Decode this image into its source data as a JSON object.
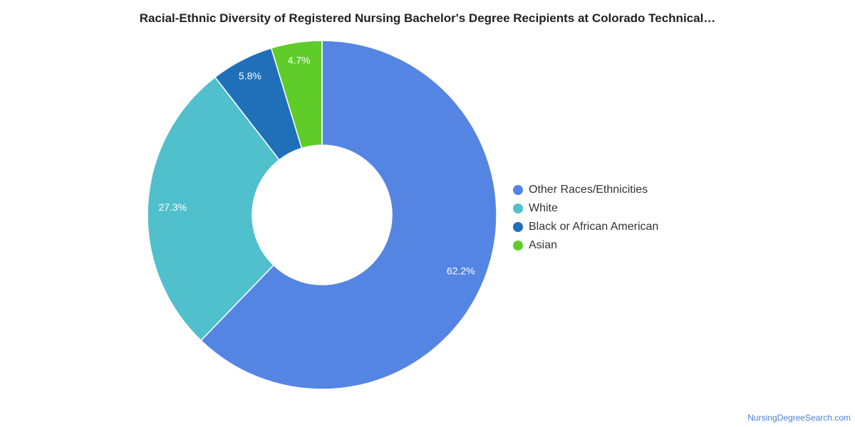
{
  "chart_data": {
    "type": "pie",
    "variant": "donut",
    "title": "Racial-Ethnic Diversity of Registered Nursing Bachelor's Degree Recipients at Colorado Technical…",
    "series": [
      {
        "label": "Other Races/Ethnicities",
        "value": 62.2,
        "display": "62.2%",
        "color": "#5585e3"
      },
      {
        "label": "White",
        "value": 27.3,
        "display": "27.3%",
        "color": "#50c0cc"
      },
      {
        "label": "Black or African American",
        "value": 5.8,
        "display": "5.8%",
        "color": "#1f70b8"
      },
      {
        "label": "Asian",
        "value": 4.7,
        "display": "4.7%",
        "color": "#5fcc2a"
      }
    ],
    "legend_position": "right"
  },
  "source_credit": "NursingDegreeSearch.com"
}
